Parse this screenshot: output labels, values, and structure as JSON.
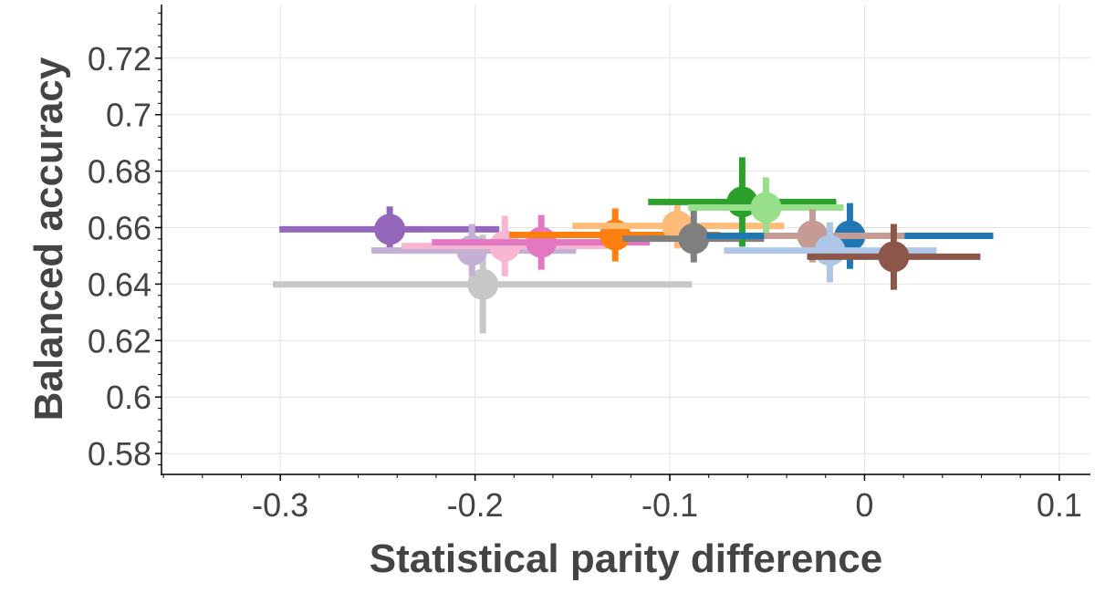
{
  "chart_data": {
    "type": "scatter",
    "title": "",
    "xlabel": "Statistical parity difference",
    "ylabel": "Balanced accuracy",
    "xlim": [
      -0.361,
      0.116
    ],
    "ylim": [
      0.5726,
      0.739
    ],
    "x_ticks": [
      -0.3,
      -0.2,
      -0.1,
      0,
      0.1
    ],
    "x_tick_labels": [
      "-0.3",
      "-0.2",
      "-0.1",
      "0",
      "0.1"
    ],
    "y_ticks": [
      0.58,
      0.6,
      0.62,
      0.64,
      0.66,
      0.68,
      0.7,
      0.72
    ],
    "y_tick_labels": [
      "0.58",
      "0.6",
      "0.62",
      "0.64",
      "0.66",
      "0.68",
      "0.7",
      "0.72"
    ],
    "x_minor_step": 0.02,
    "y_minor_step": 0.004,
    "grid": true,
    "series": [
      {
        "color": "#9467bd",
        "x": -0.2438,
        "y": 0.6594,
        "x_range": [
          -0.3005,
          -0.1875
        ],
        "y_range": [
          0.652,
          0.6675
        ]
      },
      {
        "color": "#c7c7c7",
        "x": -0.196,
        "y": 0.6399,
        "x_range": [
          -0.3038,
          -0.0886
        ],
        "y_range": [
          0.6225,
          0.6575
        ]
      },
      {
        "color": "#c5b0d5",
        "x": -0.2016,
        "y": 0.6519,
        "x_range": [
          -0.2532,
          -0.1481
        ],
        "y_range": [
          0.6428,
          0.6613
        ]
      },
      {
        "color": "#f7b6d2",
        "x": -0.1847,
        "y": 0.6535,
        "x_range": [
          -0.2377,
          -0.1322
        ],
        "y_range": [
          0.6428,
          0.6642
        ]
      },
      {
        "color": "#e377c2",
        "x": -0.166,
        "y": 0.6548,
        "x_range": [
          -0.2222,
          -0.1102
        ],
        "y_range": [
          0.6451,
          0.6645
        ]
      },
      {
        "color": "#ff7f0e",
        "x": -0.128,
        "y": 0.6574,
        "x_range": [
          -0.1824,
          -0.074
        ],
        "y_range": [
          0.648,
          0.6668
        ]
      },
      {
        "color": "#ffbb78",
        "x": -0.0961,
        "y": 0.6606,
        "x_range": [
          -0.15,
          -0.0413
        ],
        "y_range": [
          0.6526,
          0.6688
        ]
      },
      {
        "color": "#7f7f7f",
        "x": -0.0877,
        "y": 0.6561,
        "x_range": [
          -0.1242,
          -0.0516
        ],
        "y_range": [
          0.6477,
          0.6662
        ]
      },
      {
        "color": "#2ca02c",
        "x": -0.0628,
        "y": 0.6691,
        "x_range": [
          -0.1111,
          -0.0145
        ],
        "y_range": [
          0.6532,
          0.6849
        ]
      },
      {
        "color": "#98df8a",
        "x": -0.0506,
        "y": 0.6671,
        "x_range": [
          -0.0905,
          -0.0108
        ],
        "y_range": [
          0.6574,
          0.6778
        ]
      },
      {
        "color": "#1f77b4",
        "x": -0.0075,
        "y": 0.6571,
        "x_range": [
          -0.0811,
          0.0661
        ],
        "y_range": [
          0.6454,
          0.6687
        ]
      },
      {
        "color": "#c49c94",
        "x": -0.0267,
        "y": 0.6571,
        "x_range": [
          -0.0516,
          0.0206
        ],
        "y_range": [
          0.6477,
          0.6665
        ]
      },
      {
        "color": "#aec7e8",
        "x": -0.0178,
        "y": 0.6519,
        "x_range": [
          -0.0722,
          0.037
        ],
        "y_range": [
          0.6406,
          0.6619
        ]
      },
      {
        "color": "#8c564b",
        "x": 0.015,
        "y": 0.6497,
        "x_range": [
          -0.0295,
          0.0595
        ],
        "y_range": [
          0.638,
          0.6613
        ]
      }
    ]
  }
}
